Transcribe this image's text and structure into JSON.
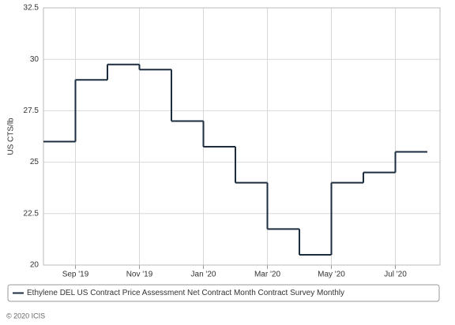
{
  "chart_data": {
    "type": "line",
    "step": true,
    "y_label": "US CTS/lb",
    "x": [
      "2019-08",
      "2019-09",
      "2019-10",
      "2019-11",
      "2019-12",
      "2020-01",
      "2020-02",
      "2020-03",
      "2020-04",
      "2020-05",
      "2020-06",
      "2020-07"
    ],
    "series": [
      {
        "name": "Ethylene DEL US Contract Price Assessment Net Contract Month Contract Survey Monthly",
        "color": "#1b2d3e",
        "values": [
          26,
          29,
          29.75,
          29.5,
          27,
          25.75,
          24,
          21.75,
          20.5,
          24,
          24.5,
          25.5
        ]
      }
    ],
    "xlim": [
      "2019-08",
      "2020-08"
    ],
    "xticks": [
      {
        "value": "2019-09",
        "label": "Sep '19"
      },
      {
        "value": "2019-11",
        "label": "Nov '19"
      },
      {
        "value": "2020-01",
        "label": "Jan '20"
      },
      {
        "value": "2020-03",
        "label": "Mar '20"
      },
      {
        "value": "2020-05",
        "label": "May '20"
      },
      {
        "value": "2020-07",
        "label": "Jul '20"
      }
    ],
    "ylim": [
      20,
      32.5
    ],
    "yticks": [
      20,
      22.5,
      25,
      27.5,
      30,
      32.5
    ],
    "grid": true,
    "legend": "bottom",
    "footer": "© 2020 ICIS"
  }
}
